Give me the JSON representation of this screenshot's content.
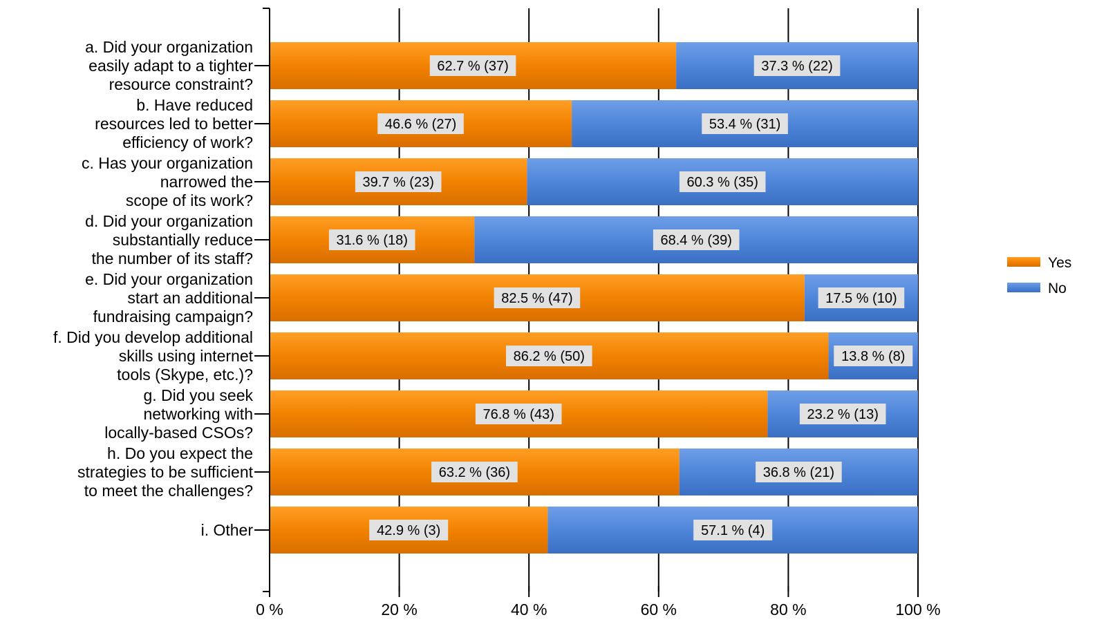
{
  "chart_data": {
    "type": "bar",
    "orientation": "horizontal",
    "stacked": true,
    "percent": true,
    "xlim": [
      0,
      100
    ],
    "tick_labels": [
      "0 %",
      "20 %",
      "40 %",
      "60 %",
      "80 %",
      "100 %"
    ],
    "grid": "vertical",
    "legend_placement": "right",
    "categories": [
      [
        "a. Did your organization",
        "easily adapt to a tighter",
        "resource constraint?"
      ],
      [
        "b. Have reduced",
        "resources led to better",
        "efficiency of work?"
      ],
      [
        "c. Has your organization",
        "narrowed the",
        "scope of its work?"
      ],
      [
        "d. Did your organization",
        "substantially reduce",
        "the number of its staff?"
      ],
      [
        "e. Did your organization",
        "start an additional",
        "fundraising campaign?"
      ],
      [
        "f. Did you develop additional",
        "skills using internet",
        "tools (Skype, etc.)?"
      ],
      [
        "g. Did you seek",
        "networking with",
        "locally-based CSOs?"
      ],
      [
        "h. Do you expect the",
        "strategies to be sufficient",
        "to meet the challenges?"
      ],
      [
        "i. Other"
      ]
    ],
    "series": [
      {
        "name": "Yes",
        "color": "#F28200",
        "values": [
          62.7,
          46.6,
          39.7,
          31.6,
          82.5,
          86.2,
          76.8,
          63.2,
          42.9
        ],
        "labels": [
          "62.7 % (37)",
          "46.6 % (27)",
          "39.7 % (23)",
          "31.6 % (18)",
          "82.5 % (47)",
          "86.2 % (50)",
          "76.8 % (43)",
          "63.2 % (36)",
          "42.9 % (3)"
        ]
      },
      {
        "name": "No",
        "color": "#4F86DA",
        "values": [
          37.3,
          53.4,
          60.3,
          68.4,
          17.5,
          13.8,
          23.2,
          36.8,
          57.1
        ],
        "labels": [
          "37.3 % (22)",
          "53.4 % (31)",
          "60.3 % (35)",
          "68.4 % (39)",
          "17.5 % (10)",
          "13.8 % (8)",
          "23.2 % (13)",
          "36.8 % (21)",
          "57.1 % (4)"
        ]
      }
    ]
  }
}
